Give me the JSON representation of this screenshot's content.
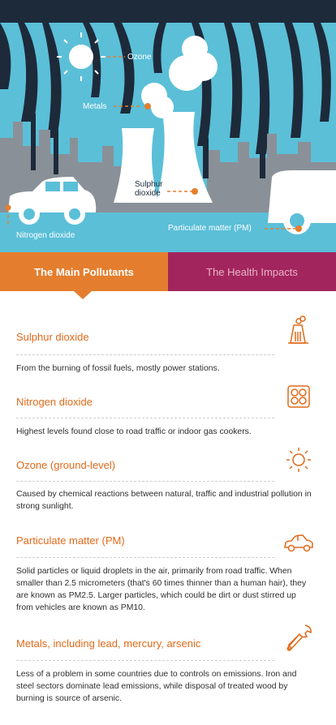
{
  "hero": {
    "labels": {
      "ozone": "Ozone",
      "metals": "Metals",
      "sulphur_line1": "Sulphur",
      "sulphur_line2": "dioxide",
      "nitrogen": "Nitrogen dioxide",
      "pm": "Particulate matter (PM)"
    },
    "colors": {
      "sky": "#5bbfd8",
      "smoke": "#1d2a3a",
      "buildings": "#8a9098",
      "ground": "#5bbfd8",
      "pointer": "#e47e2e"
    }
  },
  "tabs": [
    {
      "label": "The Main Pollutants",
      "active": true
    },
    {
      "label": "The Health Impacts",
      "active": false
    }
  ],
  "pollutants": [
    {
      "title": "Sulphur dioxide",
      "icon": "factory-chimney-icon",
      "desc": "From the burning of fossil fuels, mostly power stations."
    },
    {
      "title": "Nitrogen dioxide",
      "icon": "gas-cooker-icon",
      "desc": "Highest levels found close to road traffic or indoor gas cookers."
    },
    {
      "title": "Ozone (ground-level)",
      "icon": "sun-icon",
      "desc": "Caused by chemical reactions between natural, traffic and industrial pollution in strong sunlight."
    },
    {
      "title": "Particulate matter (PM)",
      "icon": "car-icon",
      "desc": "Solid particles or liquid droplets in the air, primarily from road traffic. When smaller than 2.5 micrometers (that's 60 times thinner than a human hair), they are known as PM2.5. Larger particles, which could be dirt or dust stirred up from vehicles are known as PM10."
    },
    {
      "title": "Metals, including lead,  mercury, arsenic",
      "icon": "wrench-icon",
      "desc": "Less of a problem in some countries due to controls on emissions. Iron and steel sectors dominate lead emissions, while disposal of treated wood by burning is source of arsenic."
    }
  ],
  "colors": {
    "accent": "#e47e2e",
    "secondary": "#a3255d",
    "title": "#e06a1a",
    "text": "#2e2e2e"
  }
}
